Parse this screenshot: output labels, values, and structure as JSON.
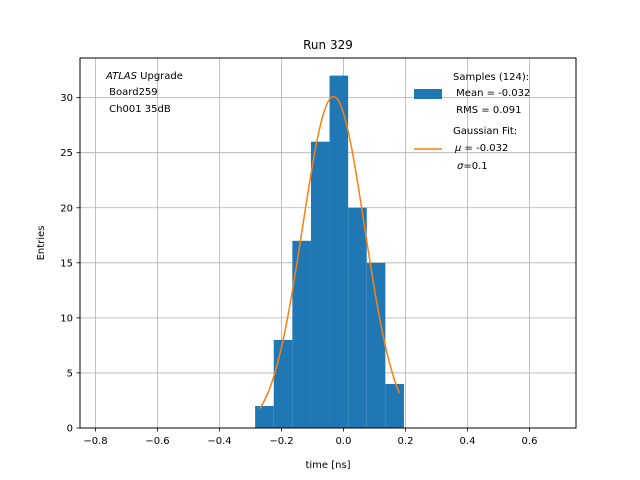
{
  "chart_data": {
    "type": "bar",
    "title": "Run 329",
    "xlabel": "time [ns]",
    "ylabel": "Entries",
    "xlim": [
      -0.85,
      0.75
    ],
    "ylim": [
      0,
      33.6
    ],
    "grid": true,
    "xticks": [
      -0.8,
      -0.6,
      -0.4,
      -0.2,
      0.0,
      0.2,
      0.4,
      0.6
    ],
    "xtick_labels": [
      "−0.8",
      "−0.6",
      "−0.4",
      "−0.2",
      "0.0",
      "0.2",
      "0.4",
      "0.6"
    ],
    "yticks": [
      0,
      5,
      10,
      15,
      20,
      25,
      30
    ],
    "ytick_labels": [
      "0",
      "5",
      "10",
      "15",
      "20",
      "25",
      "30"
    ],
    "bin_edges": [
      -0.285,
      -0.225,
      -0.165,
      -0.105,
      -0.045,
      0.015,
      0.075,
      0.135,
      0.195
    ],
    "counts": [
      2,
      8,
      17,
      26,
      32,
      20,
      15,
      4
    ],
    "hist_color": "#1f77b4",
    "fit": {
      "mu": -0.032,
      "sigma": 0.1,
      "amplitude": 30.1,
      "x_range": [
        -0.27,
        0.18
      ],
      "color": "#ff7f0e"
    },
    "annotation": {
      "italic_word": "ATLAS",
      "rest": " Upgrade",
      "line2": " Board259",
      "line3": " Ch001 35dB"
    },
    "legend": {
      "position": "top-right",
      "hist": {
        "line1": "Samples (124):",
        "line2": " Mean = -0.032",
        "line3": " RMS = 0.091"
      },
      "fit": {
        "line1": "Gaussian Fit:",
        "line2_sym": "μ",
        "line2_rest": " = -0.032",
        "line3_sym": "σ",
        "line3_rest": "=0.1"
      }
    }
  }
}
